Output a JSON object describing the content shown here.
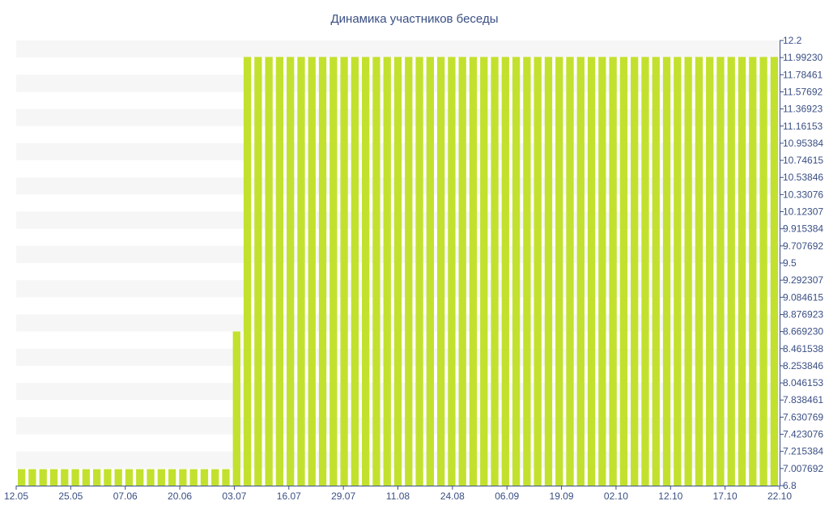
{
  "chart_data": {
    "type": "bar",
    "title": "Динамика участников беседы",
    "xlabel": "",
    "ylabel": "",
    "ylim": [
      6.8,
      12.2
    ],
    "y_axis_side": "right",
    "grid": "horizontal bands",
    "legend": "none",
    "bar_color": "#c2e12e",
    "band_color": "#f6f6f6",
    "text_color": "#3a4f84",
    "x_tick_labels": [
      "12.05",
      "25.05",
      "07.06",
      "20.06",
      "03.07",
      "16.07",
      "29.07",
      "11.08",
      "24.08",
      "06.09",
      "19.09",
      "02.10",
      "12.10",
      "17.10",
      "22.10"
    ],
    "y_tick_labels": [
      "12.2",
      "11.99230",
      "11.78461",
      "11.57692",
      "11.36923",
      "11.16153",
      "10.95384",
      "10.74615",
      "10.53846",
      "10.33076",
      "10.12307",
      "9.915384",
      "9.707692",
      "9.5",
      "9.292307",
      "9.084615",
      "8.876923",
      "8.669230",
      "8.461538",
      "8.253846",
      "8.046153",
      "7.838461",
      "7.630769",
      "7.423076",
      "7.215384",
      "7.007692",
      "6.8"
    ],
    "values": [
      7,
      7,
      7,
      7,
      7,
      7,
      7,
      7,
      7,
      7,
      7,
      7,
      7,
      7,
      7,
      7,
      7,
      7,
      7,
      7,
      8.67,
      12,
      12,
      12,
      12,
      12,
      12,
      12,
      12,
      12,
      12,
      12,
      12,
      12,
      12,
      12,
      12,
      12,
      12,
      12,
      12,
      12,
      12,
      12,
      12,
      12,
      12,
      12,
      12,
      12,
      12,
      12,
      12,
      12,
      12,
      12,
      12,
      12,
      12,
      12,
      12,
      12,
      12,
      12,
      12,
      12,
      12,
      12,
      12,
      12,
      12
    ]
  }
}
